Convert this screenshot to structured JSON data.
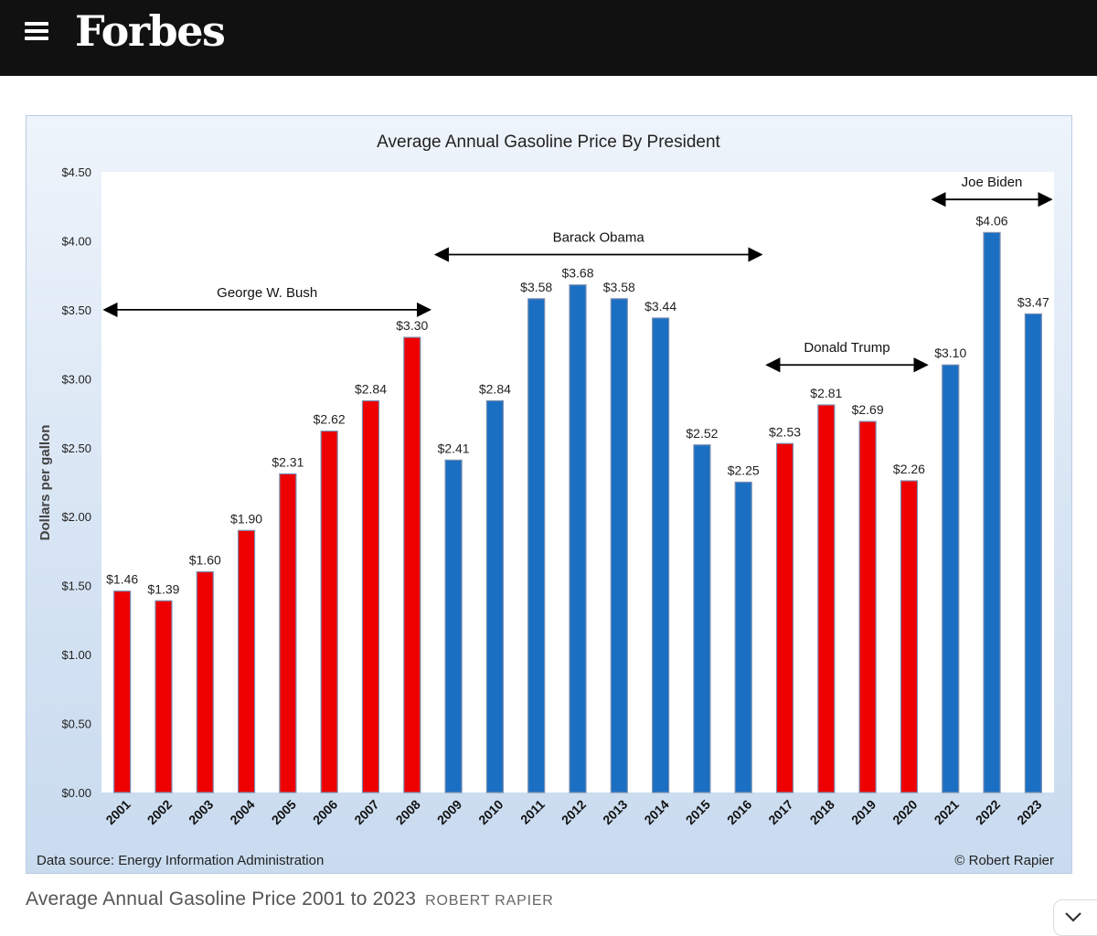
{
  "header": {
    "logo": "Forbes",
    "menu_icon": "hamburger-menu-icon"
  },
  "caption": {
    "text": "Average Annual Gasoline Price 2001 to 2023",
    "credit": "ROBERT RAPIER"
  },
  "colors": {
    "header_bg": "#111111",
    "republican": "#ee0000",
    "democrat": "#1a6fc2"
  },
  "chart_data": {
    "type": "bar",
    "title": "Average Annual Gasoline Price By President",
    "ylabel": "Dollars per gallon",
    "xlabel": "",
    "ylim": [
      0,
      4.5
    ],
    "yticks": [
      "$0.00",
      "$0.50",
      "$1.00",
      "$1.50",
      "$2.00",
      "$2.50",
      "$3.00",
      "$3.50",
      "$4.00",
      "$4.50"
    ],
    "grid": false,
    "categories": [
      "2001",
      "2002",
      "2003",
      "2004",
      "2005",
      "2006",
      "2007",
      "2008",
      "2009",
      "2010",
      "2011",
      "2012",
      "2013",
      "2014",
      "2015",
      "2016",
      "2017",
      "2018",
      "2019",
      "2020",
      "2021",
      "2022",
      "2023"
    ],
    "values": [
      1.46,
      1.39,
      1.6,
      1.9,
      2.31,
      2.62,
      2.84,
      3.3,
      2.41,
      2.84,
      3.58,
      3.68,
      3.58,
      3.44,
      2.52,
      2.25,
      2.53,
      2.81,
      2.69,
      2.26,
      3.1,
      4.06,
      3.47
    ],
    "labels": [
      "$1.46",
      "$1.39",
      "$1.60",
      "$1.90",
      "$2.31",
      "$2.62",
      "$2.84",
      "$3.30",
      "$2.41",
      "$2.84",
      "$3.58",
      "$3.68",
      "$3.58",
      "$3.44",
      "$2.52",
      "$2.25",
      "$2.53",
      "$2.81",
      "$2.69",
      "$2.26",
      "$3.10",
      "$4.06",
      "$3.47"
    ],
    "bar_colors": [
      "red",
      "red",
      "red",
      "red",
      "red",
      "red",
      "red",
      "red",
      "blue",
      "blue",
      "blue",
      "blue",
      "blue",
      "blue",
      "blue",
      "blue",
      "red",
      "red",
      "red",
      "red",
      "blue",
      "blue",
      "blue"
    ],
    "presidents": [
      {
        "name": "George W. Bush",
        "from": "2001",
        "to": "2008",
        "y": 3.5
      },
      {
        "name": "Barack Obama",
        "from": "2009",
        "to": "2016",
        "y": 3.9
      },
      {
        "name": "Donald Trump",
        "from": "2017",
        "to": "2020",
        "y": 3.1
      },
      {
        "name": "Joe Biden",
        "from": "2021",
        "to": "2023",
        "y": 4.3
      }
    ],
    "source": "Data source: Energy Information Administration",
    "copyright": "© Robert Rapier"
  }
}
